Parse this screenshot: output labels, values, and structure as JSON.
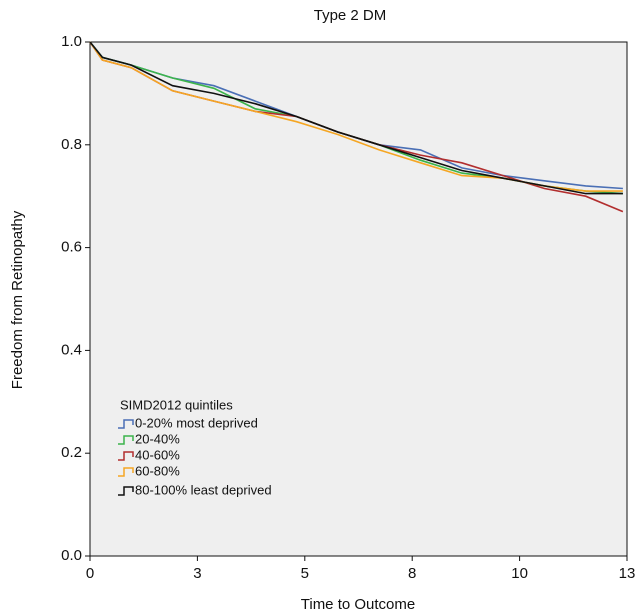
{
  "chart_data": {
    "type": "line",
    "title": "Type 2 DM",
    "xlabel": "Time to Outcome",
    "ylabel": "Freedom from Retinopathy",
    "x": [
      0,
      0.3,
      1,
      2,
      3,
      4,
      5,
      6,
      7,
      8,
      9,
      10,
      11,
      12,
      12.9
    ],
    "series": [
      {
        "name": "0-20% most deprived",
        "color": "#4a6fb5",
        "values": [
          1.0,
          0.97,
          0.955,
          0.93,
          0.915,
          0.885,
          0.855,
          0.825,
          0.8,
          0.79,
          0.755,
          0.74,
          0.73,
          0.72,
          0.715
        ]
      },
      {
        "name": "20-40%",
        "color": "#3cb44b",
        "values": [
          1.0,
          0.97,
          0.955,
          0.93,
          0.91,
          0.87,
          0.855,
          0.825,
          0.8,
          0.77,
          0.745,
          0.735,
          0.72,
          0.71,
          0.705
        ]
      },
      {
        "name": "40-60%",
        "color": "#b22e2e",
        "values": [
          1.0,
          0.965,
          0.95,
          0.905,
          0.885,
          0.865,
          0.855,
          0.825,
          0.8,
          0.78,
          0.765,
          0.74,
          0.715,
          0.7,
          0.67
        ]
      },
      {
        "name": "60-80%",
        "color": "#f5a623",
        "values": [
          1.0,
          0.965,
          0.95,
          0.905,
          0.885,
          0.865,
          0.845,
          0.82,
          0.79,
          0.765,
          0.74,
          0.735,
          0.72,
          0.71,
          0.71
        ]
      },
      {
        "name": "80-100% least deprived",
        "color": "#111111",
        "values": [
          1.0,
          0.97,
          0.955,
          0.915,
          0.9,
          0.88,
          0.855,
          0.825,
          0.8,
          0.775,
          0.75,
          0.735,
          0.72,
          0.705,
          0.705
        ]
      }
    ],
    "legend_title": "SIMD2012 quintiles",
    "legend": "lower left",
    "xlim": [
      0,
      13
    ],
    "xticks": [
      0,
      {
        "value": 2.6,
        "label": "3"
      },
      {
        "value": 5.2,
        "label": "5"
      },
      {
        "value": 7.8,
        "label": "8"
      },
      {
        "value": 10.4,
        "label": "10"
      },
      13
    ],
    "ylim": [
      0,
      1
    ],
    "yticks": [
      {
        "value": 0,
        "label": "0.0"
      },
      0.2,
      0.4,
      0.6,
      0.8,
      {
        "value": 1,
        "label": "1.0"
      }
    ],
    "background": "#efefef"
  }
}
